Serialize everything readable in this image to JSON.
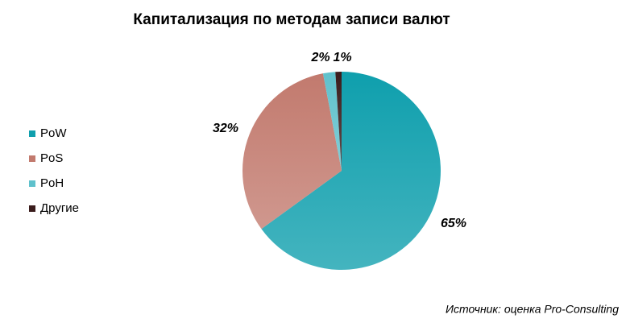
{
  "chart_data": {
    "type": "pie",
    "title": "Капитализация по методам записи валют",
    "categories": [
      "PoW",
      "PoS",
      "PoH",
      "Другие"
    ],
    "values": [
      65,
      32,
      2,
      1
    ],
    "value_labels": [
      "65%",
      "32%",
      "2%",
      "1%"
    ],
    "colors": [
      "#0f9fad",
      "#c27a6e",
      "#5fc1cc",
      "#3a1c1c"
    ],
    "legend": "left",
    "source": "Источник: оценка Pro-Consulting"
  }
}
